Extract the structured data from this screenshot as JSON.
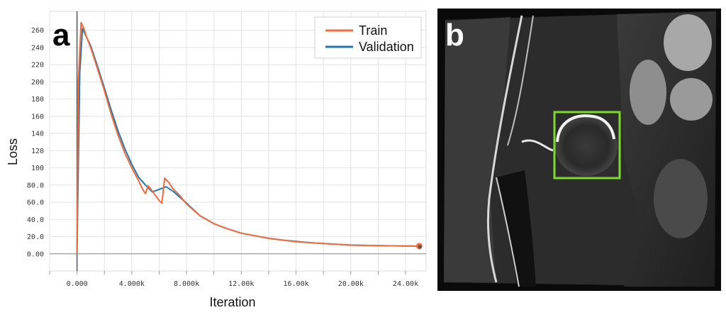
{
  "panel_a_label": "a",
  "panel_b_label": "b",
  "chart_data": {
    "type": "line",
    "xlabel": "Iteration",
    "ylabel": "Loss",
    "xlim": [
      -2000,
      25500
    ],
    "ylim": [
      -20,
      282
    ],
    "xticks": [
      0,
      4000,
      8000,
      12000,
      16000,
      20000,
      24000
    ],
    "xtick_labels": [
      "0.000",
      "4.000k",
      "8.000k",
      "12.00k",
      "16.00k",
      "20.00k",
      "24.00k"
    ],
    "yticks": [
      0,
      20,
      40,
      60,
      80,
      100,
      120,
      140,
      160,
      180,
      200,
      220,
      240,
      260
    ],
    "ytick_labels": [
      "0.00",
      "20.0",
      "40.0",
      "60.0",
      "80.0",
      "100",
      "120",
      "140",
      "160",
      "180",
      "200",
      "220",
      "240",
      "260"
    ],
    "legend_position": "top-right",
    "series": [
      {
        "name": "Train",
        "color": "#f26b3a",
        "x": [
          0,
          100,
          300,
          500,
          700,
          1000,
          1500,
          2000,
          2500,
          3000,
          3500,
          4000,
          4500,
          4800,
          5000,
          5200,
          5500,
          6000,
          6200,
          6400,
          6700,
          7000,
          7500,
          8000,
          8500,
          9000,
          10000,
          11000,
          12000,
          13000,
          14000,
          14500,
          15000,
          16000,
          17000,
          18000,
          19000,
          20000,
          21000,
          22000,
          23000,
          24000,
          25000
        ],
        "values": [
          1,
          200,
          269,
          262,
          252,
          240,
          215,
          190,
          162,
          138,
          117,
          100,
          85,
          75,
          70,
          79,
          73,
          62,
          59,
          88,
          83,
          76,
          68,
          58,
          51,
          44,
          35,
          29,
          24,
          21,
          18,
          17,
          16,
          14,
          13,
          12,
          11,
          10,
          9.8,
          9.5,
          9.3,
          9.1,
          9
        ]
      },
      {
        "name": "Validation",
        "color": "#1f78b4",
        "x": [
          0,
          200,
          400,
          700,
          1000,
          1500,
          2000,
          2500,
          3000,
          3500,
          4000,
          4500,
          5000,
          5500,
          6000,
          6500,
          7000,
          7500,
          8000,
          9000,
          10000,
          11000,
          12000,
          13000,
          14000,
          15000,
          16000,
          17000,
          18000,
          19000,
          20000,
          21000,
          22000,
          23000,
          24000,
          25000
        ],
        "values": [
          1,
          210,
          262,
          252,
          242,
          218,
          193,
          167,
          143,
          122,
          104,
          89,
          80,
          72,
          75,
          78,
          73,
          66,
          59,
          44,
          35,
          29,
          24,
          21,
          18,
          16,
          14.5,
          13,
          12,
          11,
          10.2,
          9.8,
          9.5,
          9.3,
          9.1,
          8.9
        ]
      }
    ]
  },
  "photo": {
    "description_free": true,
    "box_color": "#7ddc2a"
  }
}
